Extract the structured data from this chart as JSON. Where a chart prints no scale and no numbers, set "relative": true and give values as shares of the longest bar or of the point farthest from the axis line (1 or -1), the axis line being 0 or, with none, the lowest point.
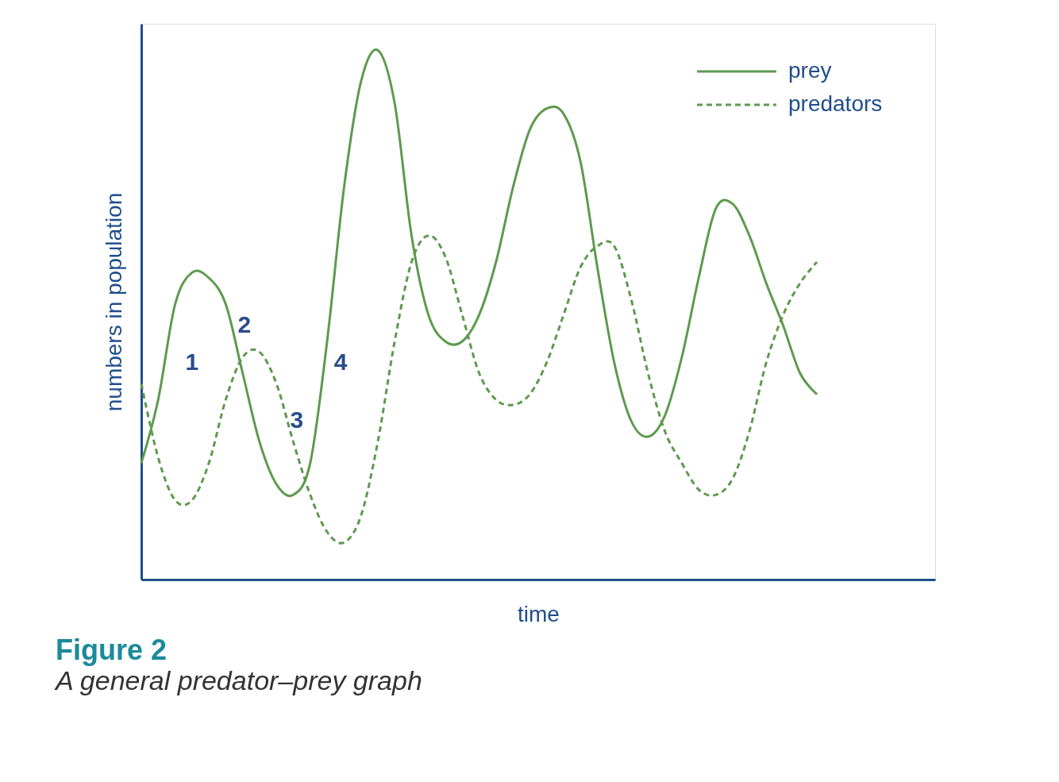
{
  "chart_data": {
    "type": "line",
    "relative": true,
    "title": "Figure 2",
    "subtitle": "A general predator–prey graph",
    "xlabel": "time",
    "ylabel": "numbers in population",
    "categories": [
      null,
      null,
      null,
      null,
      null,
      null,
      null,
      null,
      null,
      null,
      null,
      null,
      null,
      null,
      null,
      null,
      null,
      null,
      null,
      null,
      null,
      null,
      null,
      null,
      null,
      null,
      null,
      null,
      null,
      null,
      null,
      null,
      null,
      null,
      null,
      null,
      null,
      null,
      null,
      null,
      null,
      null,
      null,
      null,
      null,
      null,
      null,
      null
    ],
    "series": [
      {
        "name": "prey",
        "color": "#5e9a4e",
        "line_style": "solid",
        "values": [
          0.22,
          0.34,
          0.52,
          0.58,
          0.57,
          0.52,
          0.39,
          0.26,
          0.18,
          0.16,
          0.22,
          0.45,
          0.74,
          0.94,
          1.0,
          0.9,
          0.65,
          0.5,
          0.45,
          0.45,
          0.5,
          0.6,
          0.74,
          0.85,
          0.89,
          0.88,
          0.79,
          0.59,
          0.41,
          0.3,
          0.27,
          0.31,
          0.42,
          0.57,
          0.7,
          0.71,
          0.65,
          0.56,
          0.48,
          0.39,
          0.35,
          null,
          null,
          null,
          null,
          null,
          null,
          null
        ]
      },
      {
        "name": "predators",
        "color": "#5e9a4e",
        "line_style": "dashed",
        "values": [
          0.37,
          0.23,
          0.15,
          0.15,
          0.22,
          0.34,
          0.42,
          0.43,
          0.37,
          0.26,
          0.16,
          0.09,
          0.07,
          0.12,
          0.26,
          0.45,
          0.6,
          0.65,
          0.61,
          0.5,
          0.39,
          0.34,
          0.33,
          0.35,
          0.41,
          0.5,
          0.59,
          0.63,
          0.63,
          0.53,
          0.39,
          0.28,
          0.22,
          0.17,
          0.16,
          0.19,
          0.28,
          0.41,
          0.5,
          0.56,
          0.6,
          null,
          null,
          null,
          null,
          null,
          null,
          null
        ]
      }
    ],
    "annotations": [
      "1",
      "2",
      "3",
      "4"
    ],
    "legend": "top right",
    "grid": false
  }
}
